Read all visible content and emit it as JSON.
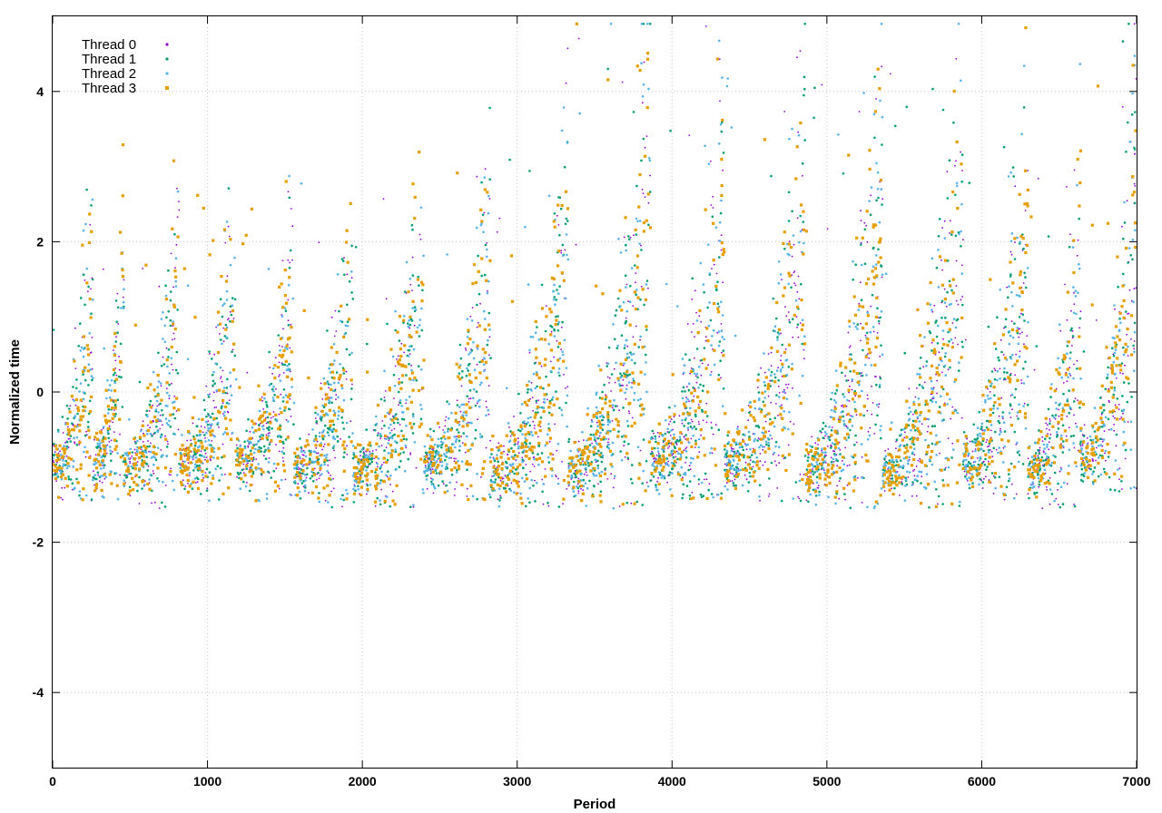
{
  "chart_data": {
    "type": "scatter",
    "title": "",
    "xlabel": "Period",
    "ylabel": "Normalized time",
    "xlim": [
      0,
      7000
    ],
    "ylim": [
      -5,
      5
    ],
    "xticks": [
      0,
      1000,
      2000,
      3000,
      4000,
      5000,
      6000,
      7000
    ],
    "yticks": [
      -4,
      -2,
      0,
      2,
      4
    ],
    "grid": true,
    "legend_position": "top-left",
    "series": [
      {
        "name": "Thread 0",
        "color": "#9400d3",
        "marker": "dot"
      },
      {
        "name": "Thread 1",
        "color": "#009e73",
        "marker": "dot"
      },
      {
        "name": "Thread 2",
        "color": "#56b4e9",
        "marker": "dot"
      },
      {
        "name": "Thread 3",
        "color": "#e69f00",
        "marker": "square"
      }
    ],
    "bursts": [
      {
        "start": 0,
        "end": 260,
        "base": -1.3,
        "peak": 2.6
      },
      {
        "start": 260,
        "end": 460,
        "base": -1.3,
        "peak": 2.0
      },
      {
        "start": 460,
        "end": 820,
        "base": -1.4,
        "peak": 1.9
      },
      {
        "start": 820,
        "end": 1180,
        "base": -1.3,
        "peak": 2.0
      },
      {
        "start": 1180,
        "end": 1560,
        "base": -1.3,
        "peak": 2.0
      },
      {
        "start": 1560,
        "end": 1940,
        "base": -1.4,
        "peak": 2.2
      },
      {
        "start": 1940,
        "end": 2400,
        "base": -1.4,
        "peak": 2.3
      },
      {
        "start": 2400,
        "end": 2830,
        "base": -1.3,
        "peak": 2.5
      },
      {
        "start": 2830,
        "end": 3330,
        "base": -1.4,
        "peak": 2.8
      },
      {
        "start": 3330,
        "end": 3860,
        "base": -1.4,
        "peak": 4.2
      },
      {
        "start": 3860,
        "end": 4340,
        "base": -1.3,
        "peak": 3.4
      },
      {
        "start": 4340,
        "end": 4860,
        "base": -1.3,
        "peak": 3.6
      },
      {
        "start": 4860,
        "end": 5360,
        "base": -1.4,
        "peak": 3.5
      },
      {
        "start": 5360,
        "end": 5880,
        "base": -1.4,
        "peak": 3.8
      },
      {
        "start": 5880,
        "end": 6300,
        "base": -1.3,
        "peak": 3.5
      },
      {
        "start": 6300,
        "end": 6640,
        "base": -1.4,
        "peak": 2.5
      },
      {
        "start": 6640,
        "end": 7000,
        "base": -1.2,
        "peak": 3.6
      }
    ],
    "points_per_series": 1750
  }
}
